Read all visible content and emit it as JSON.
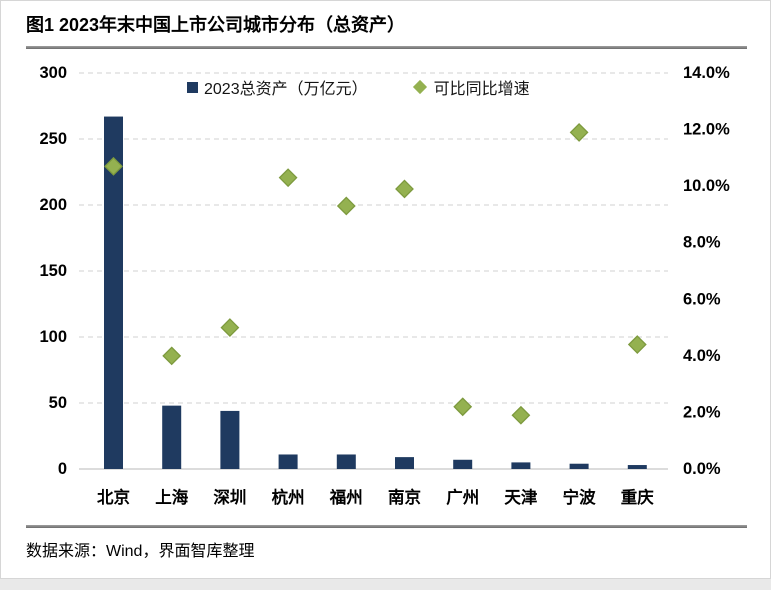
{
  "title": "图1 2023年末中国上市公司城市分布（总资产）",
  "footer": "数据来源：Wind，界面智库整理",
  "legend": {
    "bars": "2023总资产（万亿元）",
    "markers": "可比同比增速"
  },
  "colors": {
    "bar": "#1f3a60",
    "marker_fill": "#94b150",
    "marker_stroke": "#7d9a3e",
    "grid": "#d9d9d9",
    "baseline": "#d0d0d0",
    "axis_text": "#000000"
  },
  "chart_data": {
    "type": "bar",
    "title": "图1 2023年末中国上市公司城市分布（总资产）",
    "categories": [
      "北京",
      "上海",
      "深圳",
      "杭州",
      "福州",
      "南京",
      "广州",
      "天津",
      "宁波",
      "重庆"
    ],
    "series": [
      {
        "name": "2023总资产（万亿元）",
        "type": "bar",
        "axis": "left",
        "values": [
          267,
          48,
          44,
          11,
          11,
          9,
          7,
          5,
          4,
          3
        ]
      },
      {
        "name": "可比同比增速",
        "type": "scatter",
        "axis": "right",
        "values": [
          10.7,
          4.0,
          5.0,
          10.3,
          9.3,
          9.9,
          2.2,
          1.9,
          11.9,
          4.4
        ]
      }
    ],
    "left_axis": {
      "min": 0,
      "max": 300,
      "step": 50,
      "tick_labels": [
        "0",
        "50",
        "100",
        "150",
        "200",
        "250",
        "300"
      ]
    },
    "right_axis": {
      "min": 0,
      "max": 14,
      "step": 2,
      "tick_labels": [
        "0.0%",
        "2.0%",
        "4.0%",
        "6.0%",
        "8.0%",
        "10.0%",
        "12.0%",
        "14.0%"
      ]
    },
    "grid": "horizontal-dashed",
    "legend_position": "top-inside"
  }
}
